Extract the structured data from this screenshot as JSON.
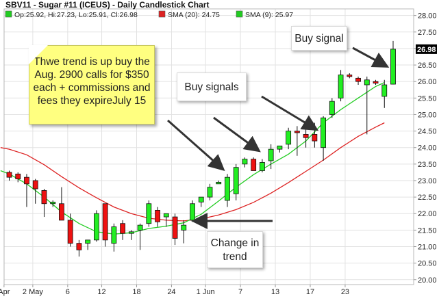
{
  "chart_data": {
    "type": "candlestick",
    "title": "SBV11 - Sugar #11 (ICEUS) - Daily Candlestick Chart",
    "legend": [
      {
        "label": "Op:25.92, Hi:27.23, Lo:25.91, Cl:26.98",
        "color": "#22cc22"
      },
      {
        "label": "SMA (20): 24.75",
        "color": "#dd2222"
      },
      {
        "label": "SMA (9): 25.97",
        "color": "#22cc22"
      }
    ],
    "ylim": [
      19.85,
      28.2
    ],
    "y_ticks": [
      "20.00",
      "20.50",
      "21.00",
      "21.50",
      "22.00",
      "22.50",
      "23.00",
      "23.50",
      "24.00",
      "24.50",
      "25.00",
      "25.50",
      "26.00",
      "26.50",
      "27.00",
      "27.50",
      "28.00"
    ],
    "x_ticks": [
      {
        "label": "Apr",
        "i": -0.6
      },
      {
        "label": "2 May",
        "i": 2.7
      },
      {
        "label": "6",
        "i": 6.7
      },
      {
        "label": "12",
        "i": 10.6
      },
      {
        "label": "18",
        "i": 14.6
      },
      {
        "label": "24",
        "i": 18.6
      },
      {
        "label": "1 Jun",
        "i": 22.5
      },
      {
        "label": "7",
        "i": 26.5
      },
      {
        "label": "13",
        "i": 30.5
      },
      {
        "label": "17",
        "i": 34.5
      },
      {
        "label": "23",
        "i": 38.5
      }
    ],
    "last_price": "26.98",
    "candles": [
      {
        "o": 23.25,
        "h": 23.3,
        "l": 23.0,
        "c": 23.1
      },
      {
        "o": 23.2,
        "h": 23.25,
        "l": 22.95,
        "c": 23.05
      },
      {
        "o": 23.1,
        "h": 23.2,
        "l": 22.2,
        "c": 22.9
      },
      {
        "o": 23.0,
        "h": 23.05,
        "l": 22.3,
        "c": 22.75
      },
      {
        "o": 22.7,
        "h": 22.75,
        "l": 21.9,
        "c": 22.3
      },
      {
        "o": 22.3,
        "h": 22.4,
        "l": 22.2,
        "c": 22.35
      },
      {
        "o": 22.3,
        "h": 22.8,
        "l": 21.8,
        "c": 21.8
      },
      {
        "o": 21.8,
        "h": 22.0,
        "l": 21.0,
        "c": 21.1
      },
      {
        "o": 21.1,
        "h": 21.2,
        "l": 20.7,
        "c": 20.9
      },
      {
        "o": 21.1,
        "h": 21.2,
        "l": 20.9,
        "c": 21.2
      },
      {
        "o": 21.2,
        "h": 22.1,
        "l": 21.15,
        "c": 22.0
      },
      {
        "o": 22.3,
        "h": 22.3,
        "l": 21.0,
        "c": 21.2
      },
      {
        "o": 21.1,
        "h": 21.7,
        "l": 20.85,
        "c": 21.6
      },
      {
        "o": 21.7,
        "h": 21.8,
        "l": 21.2,
        "c": 21.4
      },
      {
        "o": 21.4,
        "h": 21.5,
        "l": 21.2,
        "c": 21.45
      },
      {
        "o": 21.5,
        "h": 21.7,
        "l": 20.9,
        "c": 21.65
      },
      {
        "o": 21.7,
        "h": 22.4,
        "l": 21.6,
        "c": 22.3
      },
      {
        "o": 22.1,
        "h": 22.2,
        "l": 21.6,
        "c": 21.75
      },
      {
        "o": 21.9,
        "h": 22.0,
        "l": 21.6,
        "c": 22.0
      },
      {
        "o": 21.9,
        "h": 22.0,
        "l": 21.05,
        "c": 21.25
      },
      {
        "o": 21.5,
        "h": 21.8,
        "l": 21.1,
        "c": 21.65
      },
      {
        "o": 21.8,
        "h": 22.4,
        "l": 21.75,
        "c": 22.3
      },
      {
        "o": 22.35,
        "h": 22.5,
        "l": 22.2,
        "c": 22.5
      },
      {
        "o": 22.5,
        "h": 22.9,
        "l": 22.4,
        "c": 22.8
      },
      {
        "o": 22.9,
        "h": 23.0,
        "l": 22.9,
        "c": 22.95
      },
      {
        "o": 22.4,
        "h": 23.2,
        "l": 22.2,
        "c": 23.1
      },
      {
        "o": 22.6,
        "h": 23.5,
        "l": 22.4,
        "c": 23.4
      },
      {
        "o": 23.5,
        "h": 23.7,
        "l": 23.4,
        "c": 23.65
      },
      {
        "o": 23.65,
        "h": 23.7,
        "l": 23.3,
        "c": 23.3
      },
      {
        "o": 23.3,
        "h": 23.65,
        "l": 23.25,
        "c": 23.55
      },
      {
        "o": 23.6,
        "h": 24.1,
        "l": 23.35,
        "c": 23.95
      },
      {
        "o": 23.95,
        "h": 24.05,
        "l": 23.85,
        "c": 24.05
      },
      {
        "o": 24.1,
        "h": 24.6,
        "l": 23.95,
        "c": 24.5
      },
      {
        "o": 24.5,
        "h": 24.65,
        "l": 23.75,
        "c": 24.45
      },
      {
        "o": 24.4,
        "h": 24.6,
        "l": 24.0,
        "c": 24.3
      },
      {
        "o": 24.4,
        "h": 24.75,
        "l": 24.0,
        "c": 24.2
      },
      {
        "o": 24.0,
        "h": 24.95,
        "l": 23.6,
        "c": 24.9
      },
      {
        "o": 25.0,
        "h": 25.5,
        "l": 24.9,
        "c": 25.4
      },
      {
        "o": 25.5,
        "h": 26.35,
        "l": 25.4,
        "c": 26.2
      },
      {
        "o": 26.2,
        "h": 26.25,
        "l": 26.1,
        "c": 26.15
      },
      {
        "o": 26.1,
        "h": 26.15,
        "l": 25.9,
        "c": 26.0
      },
      {
        "o": 25.9,
        "h": 26.15,
        "l": 24.4,
        "c": 26.05
      },
      {
        "o": 26.0,
        "h": 26.05,
        "l": 25.9,
        "c": 25.95
      },
      {
        "o": 25.55,
        "h": 26.05,
        "l": 25.2,
        "c": 25.9
      },
      {
        "o": 25.92,
        "h": 27.23,
        "l": 25.91,
        "c": 26.98
      }
    ],
    "series": [
      {
        "name": "SMA (20)",
        "color": "#dd2222",
        "points": [
          [
            -1,
            24.0
          ],
          [
            0,
            23.95
          ],
          [
            2,
            23.78
          ],
          [
            4,
            23.48
          ],
          [
            6,
            23.12
          ],
          [
            8,
            22.78
          ],
          [
            10,
            22.48
          ],
          [
            12,
            22.2
          ],
          [
            14,
            22.0
          ],
          [
            16,
            21.86
          ],
          [
            18,
            21.8
          ],
          [
            20,
            21.78
          ],
          [
            22,
            21.84
          ],
          [
            24,
            21.96
          ],
          [
            26,
            22.12
          ],
          [
            28,
            22.34
          ],
          [
            30,
            22.62
          ],
          [
            32,
            22.94
          ],
          [
            34,
            23.28
          ],
          [
            36,
            23.62
          ],
          [
            38,
            24.0
          ],
          [
            40,
            24.34
          ],
          [
            42,
            24.62
          ],
          [
            43,
            24.75
          ]
        ]
      },
      {
        "name": "SMA (9)",
        "color": "#22cc22",
        "points": [
          [
            -1,
            23.3
          ],
          [
            0,
            23.2
          ],
          [
            2,
            22.9
          ],
          [
            4,
            22.5
          ],
          [
            6,
            22.05
          ],
          [
            8,
            21.7
          ],
          [
            10,
            21.45
          ],
          [
            12,
            21.38
          ],
          [
            14,
            21.42
          ],
          [
            16,
            21.55
          ],
          [
            18,
            21.62
          ],
          [
            20,
            21.72
          ],
          [
            22,
            21.98
          ],
          [
            24,
            22.38
          ],
          [
            26,
            22.8
          ],
          [
            28,
            23.18
          ],
          [
            30,
            23.5
          ],
          [
            32,
            23.8
          ],
          [
            34,
            24.2
          ],
          [
            36,
            24.75
          ],
          [
            38,
            25.15
          ],
          [
            40,
            25.5
          ],
          [
            42,
            25.85
          ],
          [
            43,
            25.97
          ]
        ]
      }
    ]
  },
  "annotations": {
    "sticky_note": "Thwe trend is up buy the Aug. 2900 calls for $350 each + commissions and fees they expireJuly 15",
    "buy_signal": "Buy signal",
    "buy_signals": "Buy signals",
    "change_in_trend": "Change in trend"
  }
}
